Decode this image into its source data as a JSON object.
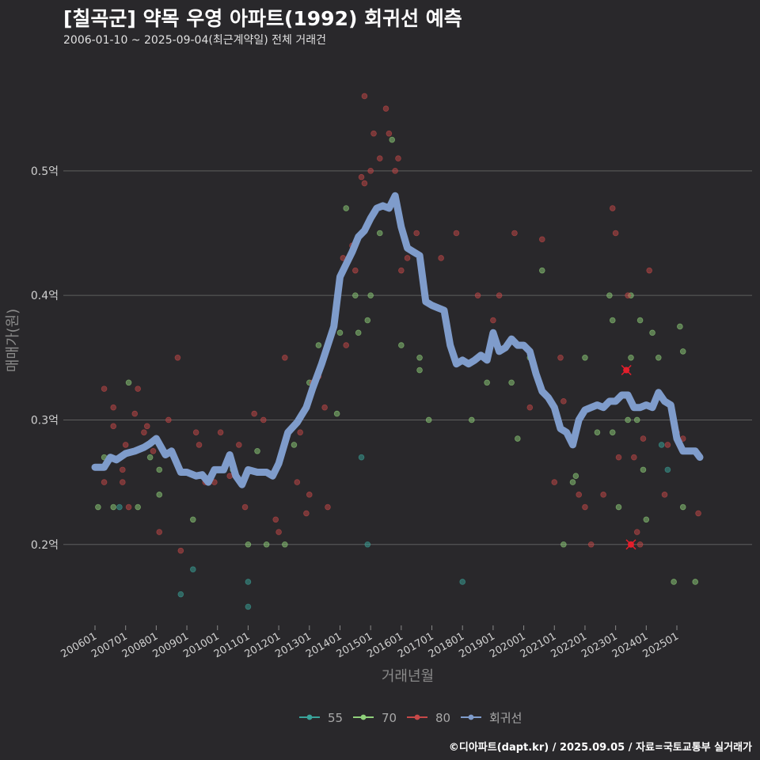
{
  "header": {
    "title": "[칠곡군] 약목 우영 아파트(1992) 회귀선 예측",
    "subtitle": "2006-01-10 ~ 2025-09-04(최근계약일) 전체 거래건"
  },
  "footer": {
    "caption": "©디아파트(dapt.kr) / 2025.09.05 / 자료=국토교통부 실거래가"
  },
  "colors": {
    "background": "#29282b",
    "grid": "#5e5e5e",
    "s55": "#3aa39a",
    "s70": "#8fd07a",
    "s80": "#c64848",
    "regression": "#7f9ccb",
    "highlight": "#e41f2c"
  },
  "chart_data": {
    "type": "scatter",
    "xlabel": "거래년월",
    "ylabel": "매매가(원)",
    "xlim": [
      2006.0,
      2025.85
    ],
    "ylim": [
      0.135,
      0.58
    ],
    "yticks": [
      {
        "value": 0.2,
        "label": "0.2억"
      },
      {
        "value": 0.3,
        "label": "0.3억"
      },
      {
        "value": 0.4,
        "label": "0.4억"
      },
      {
        "value": 0.5,
        "label": "0.5억"
      }
    ],
    "xticks": [
      {
        "value": 2006.0,
        "label": "200601"
      },
      {
        "value": 2007.0,
        "label": "200701"
      },
      {
        "value": 2008.0,
        "label": "200801"
      },
      {
        "value": 2009.0,
        "label": "200901"
      },
      {
        "value": 2010.0,
        "label": "201001"
      },
      {
        "value": 2011.0,
        "label": "201101"
      },
      {
        "value": 2012.0,
        "label": "201201"
      },
      {
        "value": 2013.0,
        "label": "201301"
      },
      {
        "value": 2014.0,
        "label": "201401"
      },
      {
        "value": 2015.0,
        "label": "201501"
      },
      {
        "value": 2016.0,
        "label": "201601"
      },
      {
        "value": 2017.0,
        "label": "201701"
      },
      {
        "value": 2018.0,
        "label": "201801"
      },
      {
        "value": 2019.0,
        "label": "201901"
      },
      {
        "value": 2020.0,
        "label": "202001"
      },
      {
        "value": 2021.0,
        "label": "202101"
      },
      {
        "value": 2022.0,
        "label": "202201"
      },
      {
        "value": 2023.0,
        "label": "202301"
      },
      {
        "value": 2024.0,
        "label": "202401"
      },
      {
        "value": 2025.0,
        "label": "202501"
      }
    ],
    "legend": [
      {
        "key": "s55",
        "label": "55"
      },
      {
        "key": "s70",
        "label": "70"
      },
      {
        "key": "s80",
        "label": "80"
      },
      {
        "key": "regression",
        "label": "회귀선"
      }
    ],
    "series": [
      {
        "name": "55",
        "key": "s55",
        "points": [
          [
            2006.8,
            0.23
          ],
          [
            2008.8,
            0.16
          ],
          [
            2009.2,
            0.18
          ],
          [
            2011.0,
            0.15
          ],
          [
            2011.0,
            0.17
          ],
          [
            2014.7,
            0.27
          ],
          [
            2014.9,
            0.2
          ],
          [
            2018.0,
            0.17
          ],
          [
            2024.5,
            0.28
          ],
          [
            2024.7,
            0.26
          ]
        ]
      },
      {
        "name": "70",
        "key": "s70",
        "points": [
          [
            2006.1,
            0.23
          ],
          [
            2006.3,
            0.27
          ],
          [
            2006.6,
            0.23
          ],
          [
            2007.1,
            0.33
          ],
          [
            2007.4,
            0.23
          ],
          [
            2007.8,
            0.27
          ],
          [
            2008.1,
            0.26
          ],
          [
            2008.1,
            0.24
          ],
          [
            2009.2,
            0.22
          ],
          [
            2010.5,
            0.26
          ],
          [
            2011.0,
            0.2
          ],
          [
            2011.3,
            0.275
          ],
          [
            2011.6,
            0.2
          ],
          [
            2012.2,
            0.2
          ],
          [
            2012.5,
            0.28
          ],
          [
            2013.0,
            0.33
          ],
          [
            2013.3,
            0.36
          ],
          [
            2013.9,
            0.305
          ],
          [
            2014.0,
            0.37
          ],
          [
            2014.2,
            0.47
          ],
          [
            2014.5,
            0.4
          ],
          [
            2014.6,
            0.37
          ],
          [
            2014.9,
            0.38
          ],
          [
            2015.0,
            0.4
          ],
          [
            2015.3,
            0.45
          ],
          [
            2015.7,
            0.525
          ],
          [
            2016.0,
            0.36
          ],
          [
            2016.6,
            0.35
          ],
          [
            2016.6,
            0.34
          ],
          [
            2016.9,
            0.3
          ],
          [
            2018.3,
            0.3
          ],
          [
            2018.8,
            0.33
          ],
          [
            2019.6,
            0.33
          ],
          [
            2019.8,
            0.285
          ],
          [
            2020.2,
            0.35
          ],
          [
            2020.6,
            0.42
          ],
          [
            2021.3,
            0.2
          ],
          [
            2021.6,
            0.25
          ],
          [
            2021.7,
            0.255
          ],
          [
            2022.0,
            0.35
          ],
          [
            2022.4,
            0.29
          ],
          [
            2022.8,
            0.4
          ],
          [
            2022.9,
            0.38
          ],
          [
            2022.9,
            0.29
          ],
          [
            2023.1,
            0.23
          ],
          [
            2023.4,
            0.3
          ],
          [
            2023.5,
            0.35
          ],
          [
            2023.5,
            0.4
          ],
          [
            2023.7,
            0.3
          ],
          [
            2023.8,
            0.38
          ],
          [
            2023.9,
            0.26
          ],
          [
            2024.0,
            0.22
          ],
          [
            2024.2,
            0.37
          ],
          [
            2024.4,
            0.35
          ],
          [
            2024.9,
            0.17
          ],
          [
            2025.1,
            0.375
          ],
          [
            2025.2,
            0.355
          ],
          [
            2025.2,
            0.23
          ],
          [
            2025.6,
            0.17
          ]
        ]
      },
      {
        "name": "80",
        "key": "s80",
        "points": [
          [
            2006.3,
            0.25
          ],
          [
            2006.3,
            0.325
          ],
          [
            2006.6,
            0.295
          ],
          [
            2006.6,
            0.31
          ],
          [
            2006.9,
            0.26
          ],
          [
            2006.9,
            0.25
          ],
          [
            2007.0,
            0.28
          ],
          [
            2007.1,
            0.23
          ],
          [
            2007.3,
            0.305
          ],
          [
            2007.4,
            0.325
          ],
          [
            2007.6,
            0.29
          ],
          [
            2007.7,
            0.295
          ],
          [
            2007.9,
            0.275
          ],
          [
            2008.1,
            0.21
          ],
          [
            2008.4,
            0.3
          ],
          [
            2008.7,
            0.35
          ],
          [
            2008.8,
            0.195
          ],
          [
            2009.3,
            0.29
          ],
          [
            2009.4,
            0.28
          ],
          [
            2009.6,
            0.25
          ],
          [
            2009.9,
            0.25
          ],
          [
            2010.1,
            0.29
          ],
          [
            2010.4,
            0.255
          ],
          [
            2010.7,
            0.28
          ],
          [
            2010.9,
            0.23
          ],
          [
            2011.2,
            0.305
          ],
          [
            2011.5,
            0.3
          ],
          [
            2011.9,
            0.22
          ],
          [
            2012.0,
            0.21
          ],
          [
            2012.2,
            0.35
          ],
          [
            2012.6,
            0.25
          ],
          [
            2012.7,
            0.29
          ],
          [
            2012.9,
            0.225
          ],
          [
            2013.0,
            0.24
          ],
          [
            2013.1,
            0.33
          ],
          [
            2013.3,
            0.335
          ],
          [
            2013.5,
            0.31
          ],
          [
            2013.6,
            0.23
          ],
          [
            2014.1,
            0.43
          ],
          [
            2014.2,
            0.36
          ],
          [
            2014.4,
            0.44
          ],
          [
            2014.5,
            0.42
          ],
          [
            2014.7,
            0.495
          ],
          [
            2014.8,
            0.49
          ],
          [
            2014.8,
            0.56
          ],
          [
            2015.0,
            0.5
          ],
          [
            2015.1,
            0.53
          ],
          [
            2015.3,
            0.51
          ],
          [
            2015.5,
            0.55
          ],
          [
            2015.6,
            0.53
          ],
          [
            2015.8,
            0.5
          ],
          [
            2015.9,
            0.51
          ],
          [
            2016.0,
            0.42
          ],
          [
            2016.2,
            0.43
          ],
          [
            2016.5,
            0.45
          ],
          [
            2017.3,
            0.43
          ],
          [
            2017.8,
            0.45
          ],
          [
            2018.5,
            0.4
          ],
          [
            2019.0,
            0.38
          ],
          [
            2019.2,
            0.4
          ],
          [
            2019.7,
            0.45
          ],
          [
            2020.2,
            0.31
          ],
          [
            2020.6,
            0.445
          ],
          [
            2021.0,
            0.25
          ],
          [
            2021.2,
            0.35
          ],
          [
            2021.3,
            0.315
          ],
          [
            2021.8,
            0.24
          ],
          [
            2022.0,
            0.23
          ],
          [
            2022.2,
            0.2
          ],
          [
            2022.6,
            0.24
          ],
          [
            2022.9,
            0.47
          ],
          [
            2023.0,
            0.45
          ],
          [
            2023.1,
            0.27
          ],
          [
            2023.4,
            0.4
          ],
          [
            2023.6,
            0.27
          ],
          [
            2023.7,
            0.21
          ],
          [
            2023.8,
            0.2
          ],
          [
            2023.9,
            0.285
          ],
          [
            2024.1,
            0.42
          ],
          [
            2024.2,
            0.31
          ],
          [
            2024.6,
            0.24
          ],
          [
            2024.7,
            0.28
          ],
          [
            2025.0,
            0.29
          ],
          [
            2025.2,
            0.285
          ],
          [
            2025.7,
            0.225
          ]
        ]
      }
    ],
    "highlights": [
      [
        2023.35,
        0.34
      ],
      [
        2023.5,
        0.2
      ]
    ],
    "regression": [
      [
        2006.0,
        0.262
      ],
      [
        2006.3,
        0.262
      ],
      [
        2006.5,
        0.27
      ],
      [
        2006.7,
        0.268
      ],
      [
        2007.0,
        0.273
      ],
      [
        2007.3,
        0.275
      ],
      [
        2007.6,
        0.278
      ],
      [
        2007.8,
        0.281
      ],
      [
        2008.0,
        0.285
      ],
      [
        2008.3,
        0.272
      ],
      [
        2008.5,
        0.275
      ],
      [
        2008.8,
        0.258
      ],
      [
        2009.0,
        0.258
      ],
      [
        2009.3,
        0.255
      ],
      [
        2009.5,
        0.256
      ],
      [
        2009.7,
        0.25
      ],
      [
        2009.9,
        0.26
      ],
      [
        2010.2,
        0.26
      ],
      [
        2010.4,
        0.272
      ],
      [
        2010.6,
        0.255
      ],
      [
        2010.8,
        0.248
      ],
      [
        2011.0,
        0.26
      ],
      [
        2011.3,
        0.258
      ],
      [
        2011.6,
        0.258
      ],
      [
        2011.8,
        0.255
      ],
      [
        2012.0,
        0.265
      ],
      [
        2012.3,
        0.29
      ],
      [
        2012.6,
        0.298
      ],
      [
        2012.9,
        0.31
      ],
      [
        2013.1,
        0.325
      ],
      [
        2013.4,
        0.345
      ],
      [
        2013.6,
        0.36
      ],
      [
        2013.8,
        0.375
      ],
      [
        2014.0,
        0.415
      ],
      [
        2014.2,
        0.425
      ],
      [
        2014.4,
        0.435
      ],
      [
        2014.6,
        0.447
      ],
      [
        2014.8,
        0.452
      ],
      [
        2015.0,
        0.462
      ],
      [
        2015.2,
        0.47
      ],
      [
        2015.4,
        0.472
      ],
      [
        2015.6,
        0.47
      ],
      [
        2015.8,
        0.48
      ],
      [
        2016.0,
        0.455
      ],
      [
        2016.2,
        0.438
      ],
      [
        2016.4,
        0.435
      ],
      [
        2016.6,
        0.432
      ],
      [
        2016.8,
        0.395
      ],
      [
        2017.0,
        0.392
      ],
      [
        2017.2,
        0.39
      ],
      [
        2017.4,
        0.388
      ],
      [
        2017.6,
        0.36
      ],
      [
        2017.8,
        0.345
      ],
      [
        2018.0,
        0.348
      ],
      [
        2018.2,
        0.345
      ],
      [
        2018.4,
        0.348
      ],
      [
        2018.6,
        0.352
      ],
      [
        2018.8,
        0.348
      ],
      [
        2019.0,
        0.37
      ],
      [
        2019.2,
        0.355
      ],
      [
        2019.4,
        0.358
      ],
      [
        2019.6,
        0.365
      ],
      [
        2019.8,
        0.36
      ],
      [
        2020.0,
        0.36
      ],
      [
        2020.2,
        0.355
      ],
      [
        2020.4,
        0.337
      ],
      [
        2020.6,
        0.323
      ],
      [
        2020.8,
        0.318
      ],
      [
        2021.0,
        0.31
      ],
      [
        2021.2,
        0.293
      ],
      [
        2021.4,
        0.29
      ],
      [
        2021.6,
        0.28
      ],
      [
        2021.8,
        0.3
      ],
      [
        2022.0,
        0.308
      ],
      [
        2022.2,
        0.31
      ],
      [
        2022.4,
        0.312
      ],
      [
        2022.6,
        0.31
      ],
      [
        2022.8,
        0.315
      ],
      [
        2023.0,
        0.315
      ],
      [
        2023.2,
        0.32
      ],
      [
        2023.4,
        0.32
      ],
      [
        2023.6,
        0.31
      ],
      [
        2023.8,
        0.31
      ],
      [
        2024.0,
        0.312
      ],
      [
        2024.2,
        0.31
      ],
      [
        2024.4,
        0.322
      ],
      [
        2024.6,
        0.315
      ],
      [
        2024.8,
        0.312
      ],
      [
        2025.0,
        0.285
      ],
      [
        2025.2,
        0.275
      ],
      [
        2025.4,
        0.275
      ],
      [
        2025.6,
        0.275
      ],
      [
        2025.75,
        0.27
      ]
    ]
  }
}
